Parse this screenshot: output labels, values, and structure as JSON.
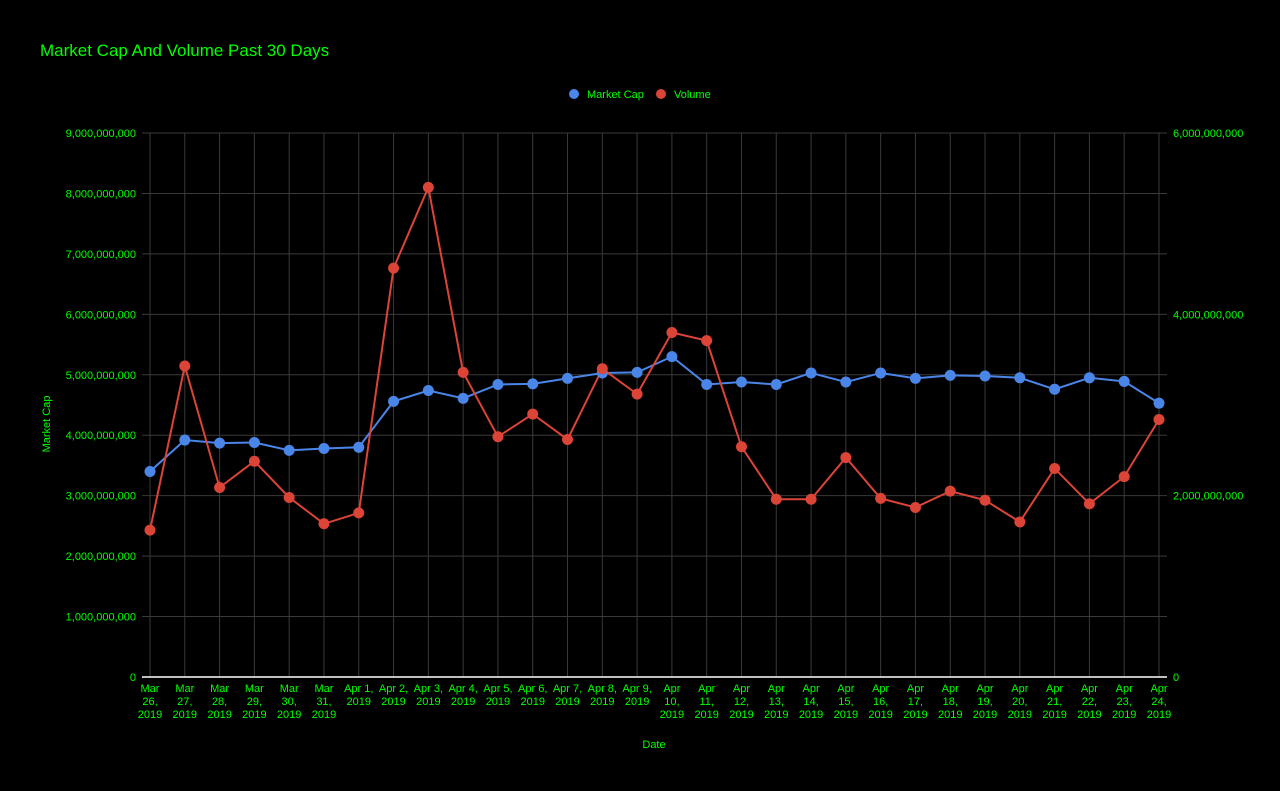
{
  "chart_data": {
    "type": "line",
    "title": "Market Cap And Volume Past 30 Days",
    "xlabel": "Date",
    "ylabel": "Market Cap",
    "y2label": "",
    "text_color": "#00ff00",
    "grid_color": "#3a3a3a",
    "axis_color": "#ffffff",
    "grid": true,
    "legend_position": "top-center",
    "ylim": [
      0,
      9000000000
    ],
    "y_ticks": [
      0,
      1000000000,
      2000000000,
      3000000000,
      4000000000,
      5000000000,
      6000000000,
      7000000000,
      8000000000,
      9000000000
    ],
    "y_tick_labels": [
      "0",
      "1,000,000,000",
      "2,000,000,000",
      "3,000,000,000",
      "4,000,000,000",
      "5,000,000,000",
      "6,000,000,000",
      "7,000,000,000",
      "8,000,000,000",
      "9,000,000,000"
    ],
    "y2lim": [
      0,
      6000000000
    ],
    "y2_ticks": [
      0,
      2000000000,
      4000000000,
      6000000000
    ],
    "y2_tick_labels": [
      "0",
      "2,000,000,000",
      "4,000,000,000",
      "6,000,000,000"
    ],
    "categories": [
      [
        "Mar",
        "26,",
        "2019"
      ],
      [
        "Mar",
        "27,",
        "2019"
      ],
      [
        "Mar",
        "28,",
        "2019"
      ],
      [
        "Mar",
        "29,",
        "2019"
      ],
      [
        "Mar",
        "30,",
        "2019"
      ],
      [
        "Mar",
        "31,",
        "2019"
      ],
      [
        "Apr 1,",
        "2019"
      ],
      [
        "Apr 2,",
        "2019"
      ],
      [
        "Apr 3,",
        "2019"
      ],
      [
        "Apr 4,",
        "2019"
      ],
      [
        "Apr 5,",
        "2019"
      ],
      [
        "Apr 6,",
        "2019"
      ],
      [
        "Apr 7,",
        "2019"
      ],
      [
        "Apr 8,",
        "2019"
      ],
      [
        "Apr 9,",
        "2019"
      ],
      [
        "Apr",
        "10,",
        "2019"
      ],
      [
        "Apr",
        "11,",
        "2019"
      ],
      [
        "Apr",
        "12,",
        "2019"
      ],
      [
        "Apr",
        "13,",
        "2019"
      ],
      [
        "Apr",
        "14,",
        "2019"
      ],
      [
        "Apr",
        "15,",
        "2019"
      ],
      [
        "Apr",
        "16,",
        "2019"
      ],
      [
        "Apr",
        "17,",
        "2019"
      ],
      [
        "Apr",
        "18,",
        "2019"
      ],
      [
        "Apr",
        "19,",
        "2019"
      ],
      [
        "Apr",
        "20,",
        "2019"
      ],
      [
        "Apr",
        "21,",
        "2019"
      ],
      [
        "Apr",
        "22,",
        "2019"
      ],
      [
        "Apr",
        "23,",
        "2019"
      ],
      [
        "Apr",
        "24,",
        "2019"
      ]
    ],
    "series": [
      {
        "name": "Market Cap",
        "axis": "left",
        "color": "#4a86e8",
        "values": [
          3400000000,
          3920000000,
          3870000000,
          3880000000,
          3750000000,
          3780000000,
          3800000000,
          4560000000,
          4740000000,
          4610000000,
          4840000000,
          4850000000,
          4940000000,
          5030000000,
          5040000000,
          5300000000,
          4840000000,
          4880000000,
          4840000000,
          5030000000,
          4880000000,
          5030000000,
          4940000000,
          4990000000,
          4980000000,
          4950000000,
          4760000000,
          4950000000,
          4890000000,
          4530000000
        ]
      },
      {
        "name": "Volume",
        "axis": "right",
        "color": "#db4437",
        "values": [
          1620000000,
          3430000000,
          2090000000,
          2380000000,
          1980000000,
          1690000000,
          1810000000,
          4510000000,
          5400000000,
          3360000000,
          2650000000,
          2900000000,
          2620000000,
          3400000000,
          3120000000,
          3800000000,
          3710000000,
          2540000000,
          1960000000,
          1960000000,
          2420000000,
          1970000000,
          1870000000,
          2050000000,
          1950000000,
          1710000000,
          2300000000,
          1910000000,
          2210000000,
          2840000000
        ]
      }
    ]
  }
}
